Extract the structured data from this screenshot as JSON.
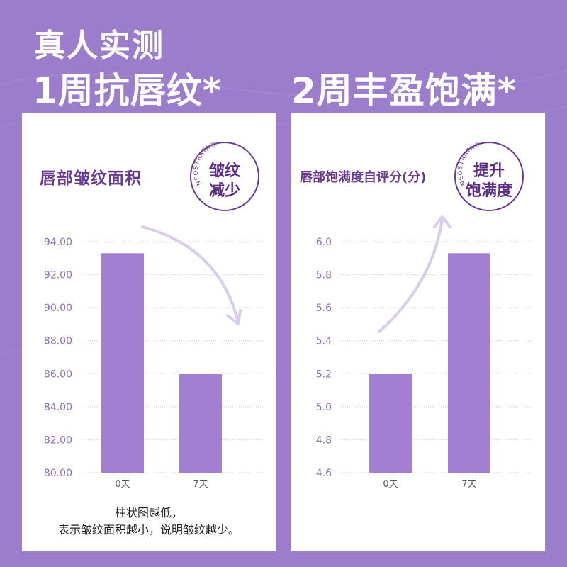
{
  "headline": {
    "top": "真人实测",
    "left": "1周抗唇纹*",
    "right": "2周丰盈饱满*"
  },
  "colors": {
    "background": "#9b7dcb",
    "bar": "#a27fd0",
    "title": "#6a3a93",
    "axis_text": "#8c6fb0",
    "arrow": "#d9ccec"
  },
  "icons": {
    "left_arrow": "curved-arrow-down-right-icon",
    "right_arrow": "curved-arrow-up-icon"
  },
  "panels": [
    {
      "title": "唇部皱纹面积",
      "badge": {
        "brand": "NEOSTRATA®",
        "line1": "皱纹",
        "line2": "减少"
      },
      "footnote": {
        "line1": "柱状图越低，",
        "line2": "表示皱纹面积越小，说明皱纹越少。"
      }
    },
    {
      "title": "唇部饱满度自评分(分)",
      "badge": {
        "brand": "NEOSTRATA®",
        "line1": "提升",
        "line2": "饱满度"
      }
    }
  ],
  "chart_data": [
    {
      "type": "bar",
      "title": "唇部皱纹面积",
      "categories": [
        "0天",
        "7天"
      ],
      "values": [
        93.3,
        86.0
      ],
      "ylim": [
        80,
        94
      ],
      "yticks": [
        "80.00",
        "82.00",
        "84.00",
        "86.00",
        "88.00",
        "90.00",
        "92.00",
        "94.00"
      ],
      "grid": true
    },
    {
      "type": "bar",
      "title": "唇部饱满度自评分(分)",
      "categories": [
        "0天",
        "7天"
      ],
      "values": [
        5.2,
        5.93
      ],
      "ylim": [
        4.6,
        6.0
      ],
      "yticks": [
        "4.6",
        "4.8",
        "5.0",
        "5.2",
        "5.4",
        "5.6",
        "5.8",
        "6.0"
      ],
      "grid": true
    }
  ]
}
